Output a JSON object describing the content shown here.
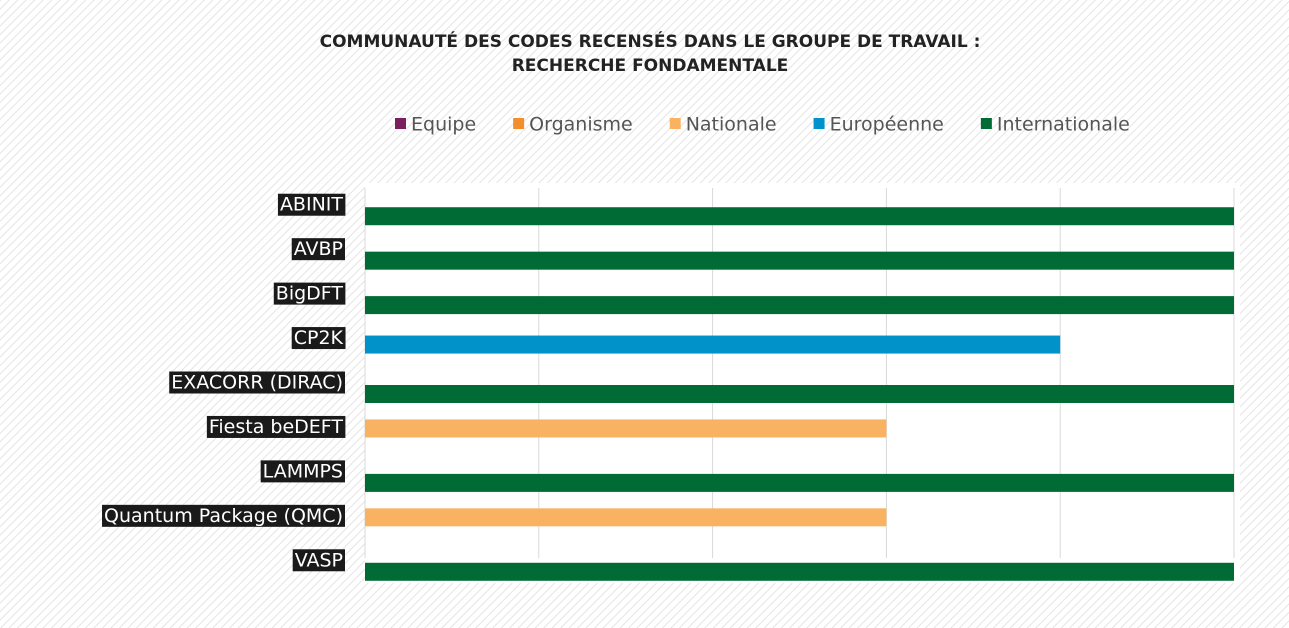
{
  "chart_data": {
    "type": "bar",
    "orientation": "horizontal",
    "title": [
      "COMMUNAUTÉ DES CODES RECENSÉS DANS LE GROUPE DE TRAVAIL :",
      "RECHERCHE FONDAMENTALE"
    ],
    "categories": [
      "ABINIT",
      "AVBP",
      "BigDFT",
      "CP2K",
      "EXACORR (DIRAC)",
      "Fiesta beDEFT",
      "LAMMPS",
      "Quantum Package (QMC)",
      "VASP"
    ],
    "series": [
      {
        "name": "Equipe",
        "color": "#7b1f5e",
        "values": [
          null,
          null,
          null,
          null,
          null,
          null,
          null,
          null,
          null
        ]
      },
      {
        "name": "Organisme",
        "color": "#f28e2b",
        "values": [
          null,
          null,
          null,
          null,
          null,
          null,
          null,
          null,
          null
        ]
      },
      {
        "name": "Nationale",
        "color": "#f9b262",
        "values": [
          null,
          null,
          null,
          null,
          null,
          3,
          null,
          3,
          null
        ]
      },
      {
        "name": "Européenne",
        "color": "#0092c8",
        "values": [
          null,
          null,
          null,
          4,
          null,
          null,
          null,
          null,
          null
        ]
      },
      {
        "name": "Internationale",
        "color": "#006b35",
        "values": [
          5,
          5,
          5,
          null,
          5,
          null,
          5,
          null,
          5
        ]
      }
    ],
    "xlim": [
      0,
      5
    ],
    "xticks": [
      0,
      1,
      2,
      3,
      4,
      5
    ],
    "grid": true,
    "legend": "top"
  }
}
